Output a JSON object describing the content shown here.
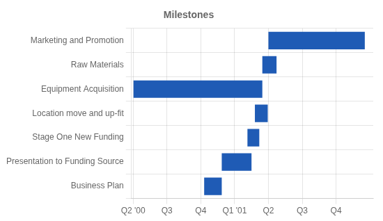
{
  "chart_data": {
    "type": "bar",
    "orientation": "horizontal",
    "title": "Milestones",
    "categories": [
      "Marketing and Promotion",
      "Raw Materials",
      "Equipment Acquisition",
      "Location move and up-fit",
      "Stage One New Funding",
      "Presentation to Funding Source",
      "Business Plan"
    ],
    "starts": [
      4.0,
      3.82,
      0.0,
      3.6,
      3.38,
      2.62,
      2.1
    ],
    "values": [
      2.85,
      0.42,
      3.82,
      0.38,
      0.35,
      0.88,
      0.52
    ],
    "color": "#1F5BB5",
    "xlim": [
      -0.05,
      7.1
    ],
    "xticks": [
      {
        "value": 0,
        "label": "Q2 '00"
      },
      {
        "value": 1,
        "label": "Q3"
      },
      {
        "value": 2,
        "label": "Q4"
      },
      {
        "value": 3,
        "label": "Q1 '01"
      },
      {
        "value": 4,
        "label": "Q2"
      },
      {
        "value": 5,
        "label": "Q3"
      },
      {
        "value": 6,
        "label": "Q4"
      }
    ],
    "grid": true
  }
}
